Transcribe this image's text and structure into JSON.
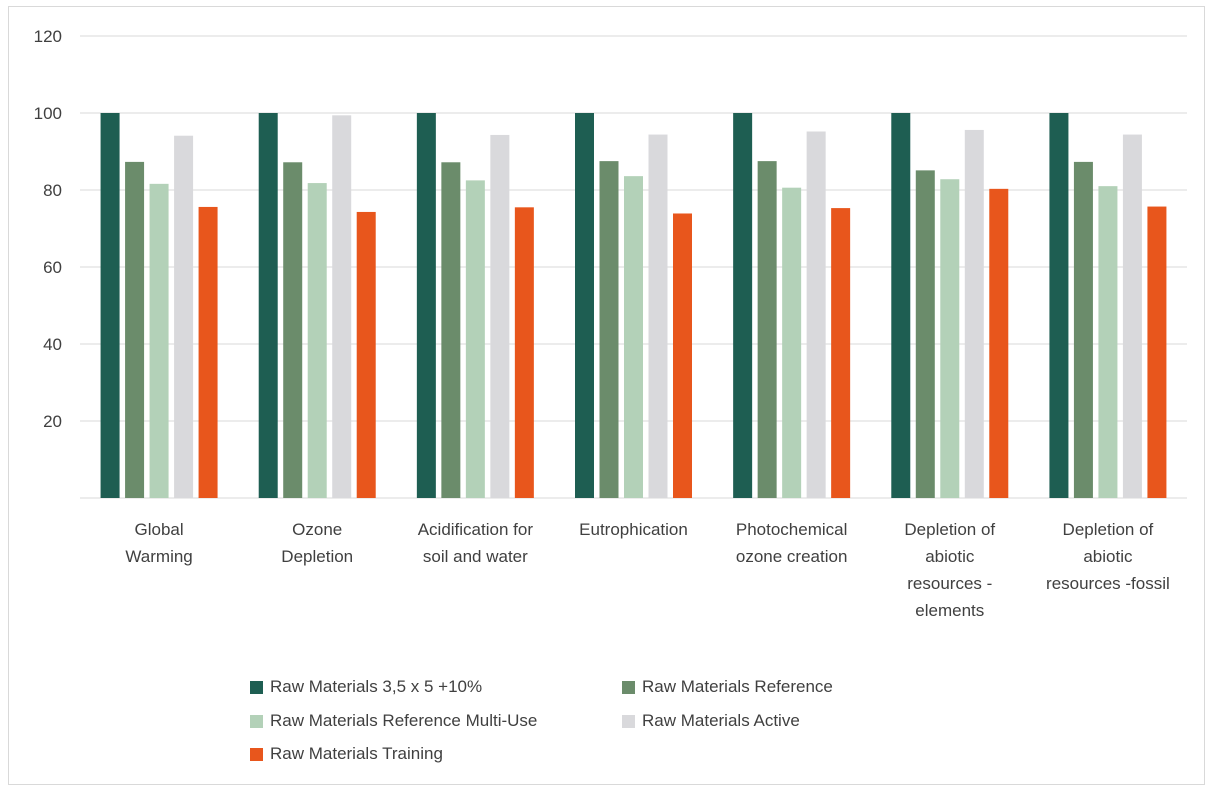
{
  "chart_data": {
    "type": "bar",
    "title": "",
    "xlabel": "",
    "ylabel": "",
    "ylim": [
      0,
      120
    ],
    "yticks": [
      20,
      40,
      60,
      80,
      100,
      120
    ],
    "grid": true,
    "legend_position": "bottom",
    "categories": [
      [
        "Global",
        "Warming"
      ],
      [
        "Ozone",
        "Depletion"
      ],
      [
        "Acidification for",
        "soil and water"
      ],
      [
        "Eutrophication"
      ],
      [
        "Photochemical",
        "ozone creation"
      ],
      [
        "Depletion of",
        "abiotic",
        "resources -",
        "elements"
      ],
      [
        "Depletion of",
        "abiotic",
        "resources -fossil"
      ]
    ],
    "series": [
      {
        "name": "Raw Materials 3,5 x 5 +10%",
        "color": "#1e5e52",
        "values": [
          100,
          100,
          100,
          100,
          100,
          100,
          100
        ]
      },
      {
        "name": "Raw Materials Reference",
        "color": "#6b8c6b",
        "values": [
          87.3,
          87.2,
          87.2,
          87.5,
          87.5,
          85.1,
          87.3
        ]
      },
      {
        "name": "Raw Materials Reference Multi-Use",
        "color": "#b3d1b8",
        "values": [
          81.6,
          81.8,
          82.5,
          83.6,
          80.6,
          82.8,
          81.0
        ]
      },
      {
        "name": "Raw Materials Active",
        "color": "#d9d9dc",
        "values": [
          94.1,
          99.4,
          94.3,
          94.4,
          95.2,
          95.6,
          94.4
        ]
      },
      {
        "name": "Raw Materials Training",
        "color": "#e8561c",
        "values": [
          75.6,
          74.3,
          75.5,
          73.9,
          75.3,
          80.3,
          75.7
        ]
      }
    ]
  }
}
